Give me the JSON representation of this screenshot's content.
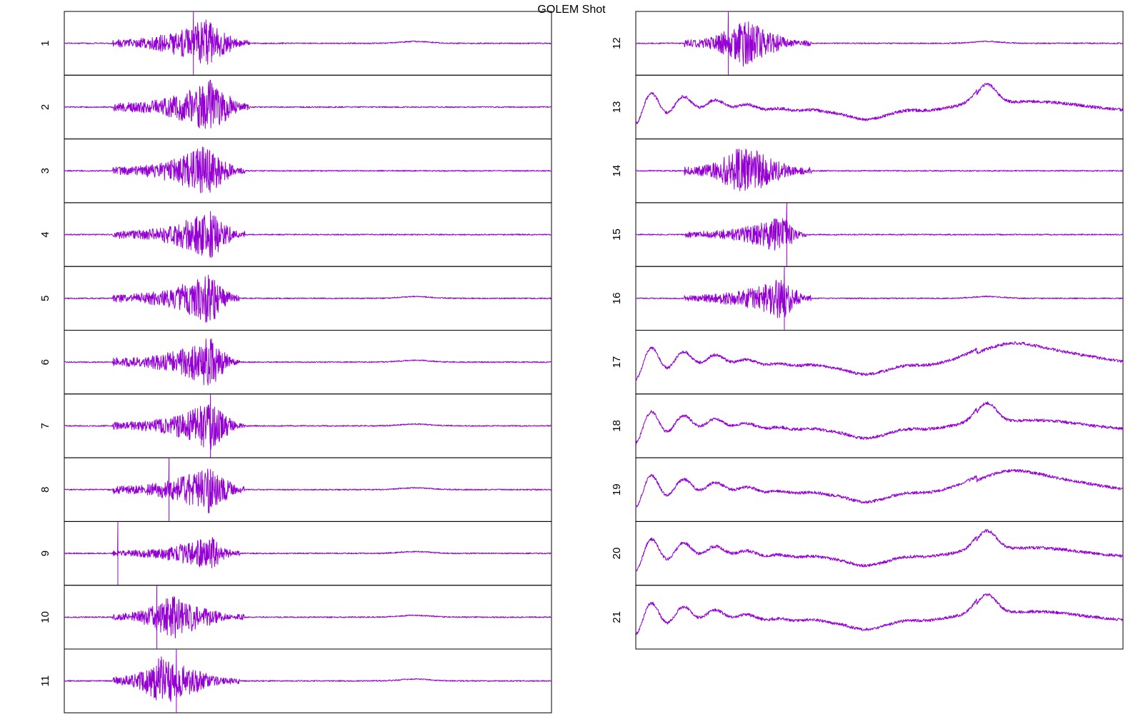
{
  "window": {
    "title": "GOLEM Shot"
  },
  "chart_data": {
    "type": "line",
    "title": "GOLEM Shot",
    "xlabel": "",
    "ylabel": "",
    "grid": false,
    "legend": "none",
    "trace_color": "#9400d3",
    "columns": [
      {
        "name": "left",
        "panels": [
          "1",
          "2",
          "3",
          "4",
          "5",
          "6",
          "7",
          "8",
          "9",
          "10",
          "11"
        ]
      },
      {
        "name": "right",
        "panels": [
          "12",
          "13",
          "14",
          "15",
          "16",
          "17",
          "18",
          "19",
          "20",
          "21"
        ]
      }
    ],
    "series": [
      {
        "name": "1",
        "kind": "burst",
        "baseline": 0.0,
        "burst_start": 0.1,
        "burst_end": 0.38,
        "burst_peak": 0.29,
        "amplitude": 0.42,
        "spike_at": 0.265,
        "late_bump": 0.72
      },
      {
        "name": "2",
        "kind": "burst",
        "baseline": 0.0,
        "burst_start": 0.1,
        "burst_end": 0.38,
        "burst_peak": 0.3,
        "amplitude": 0.46,
        "spike_at": null,
        "late_bump": null
      },
      {
        "name": "3",
        "kind": "burst",
        "baseline": 0.0,
        "burst_start": 0.1,
        "burst_end": 0.37,
        "burst_peak": 0.29,
        "amplitude": 0.44,
        "spike_at": null,
        "late_bump": null
      },
      {
        "name": "4",
        "kind": "burst",
        "baseline": 0.0,
        "burst_start": 0.1,
        "burst_end": 0.37,
        "burst_peak": 0.3,
        "amplitude": 0.42,
        "spike_at": null,
        "late_bump": null
      },
      {
        "name": "5",
        "kind": "burst",
        "baseline": 0.0,
        "burst_start": 0.1,
        "burst_end": 0.36,
        "burst_peak": 0.3,
        "amplitude": 0.44,
        "spike_at": null,
        "late_bump": 0.72
      },
      {
        "name": "6",
        "kind": "burst",
        "baseline": 0.0,
        "burst_start": 0.1,
        "burst_end": 0.36,
        "burst_peak": 0.3,
        "amplitude": 0.44,
        "spike_at": null,
        "late_bump": 0.72
      },
      {
        "name": "7",
        "kind": "burst",
        "baseline": 0.0,
        "burst_start": 0.1,
        "burst_end": 0.37,
        "burst_peak": 0.3,
        "amplitude": 0.4,
        "spike_at": 0.3,
        "late_bump": 0.72
      },
      {
        "name": "8",
        "kind": "burst",
        "baseline": 0.0,
        "burst_start": 0.1,
        "burst_end": 0.37,
        "burst_peak": 0.3,
        "amplitude": 0.42,
        "spike_at": 0.215,
        "late_bump": 0.72
      },
      {
        "name": "9",
        "kind": "burst",
        "baseline": 0.0,
        "burst_start": 0.1,
        "burst_end": 0.36,
        "burst_peak": 0.3,
        "amplitude": 0.3,
        "spike_at": 0.11,
        "late_bump": 0.72
      },
      {
        "name": "10",
        "kind": "burst",
        "baseline": 0.0,
        "burst_start": 0.1,
        "burst_end": 0.37,
        "burst_peak": 0.22,
        "amplitude": 0.38,
        "spike_at": 0.19,
        "late_bump": 0.72
      },
      {
        "name": "11",
        "kind": "burst",
        "baseline": 0.0,
        "burst_start": 0.1,
        "burst_end": 0.36,
        "burst_peak": 0.2,
        "amplitude": 0.42,
        "spike_at": 0.23,
        "late_bump": 0.72
      },
      {
        "name": "12",
        "kind": "burst",
        "baseline": 0.0,
        "burst_start": 0.1,
        "burst_end": 0.36,
        "burst_peak": 0.22,
        "amplitude": 0.4,
        "spike_at": 0.19,
        "late_bump": 0.72
      },
      {
        "name": "13",
        "kind": "slow",
        "variant": "a"
      },
      {
        "name": "14",
        "kind": "burst",
        "baseline": 0.0,
        "burst_start": 0.1,
        "burst_end": 0.36,
        "burst_peak": 0.22,
        "amplitude": 0.46,
        "spike_at": null,
        "late_bump": null
      },
      {
        "name": "15",
        "kind": "burst",
        "baseline": 0.0,
        "burst_start": 0.1,
        "burst_end": 0.35,
        "burst_peak": 0.3,
        "amplitude": 0.32,
        "spike_at": 0.31,
        "late_bump": null
      },
      {
        "name": "16",
        "kind": "burst",
        "baseline": 0.0,
        "burst_start": 0.1,
        "burst_end": 0.36,
        "burst_peak": 0.3,
        "amplitude": 0.36,
        "spike_at": 0.305,
        "late_bump": 0.72
      },
      {
        "name": "17",
        "kind": "slow",
        "variant": "b"
      },
      {
        "name": "18",
        "kind": "slow",
        "variant": "a"
      },
      {
        "name": "19",
        "kind": "slow",
        "variant": "b"
      },
      {
        "name": "20",
        "kind": "slow",
        "variant": "a"
      },
      {
        "name": "21",
        "kind": "slow",
        "variant": "a"
      }
    ]
  }
}
